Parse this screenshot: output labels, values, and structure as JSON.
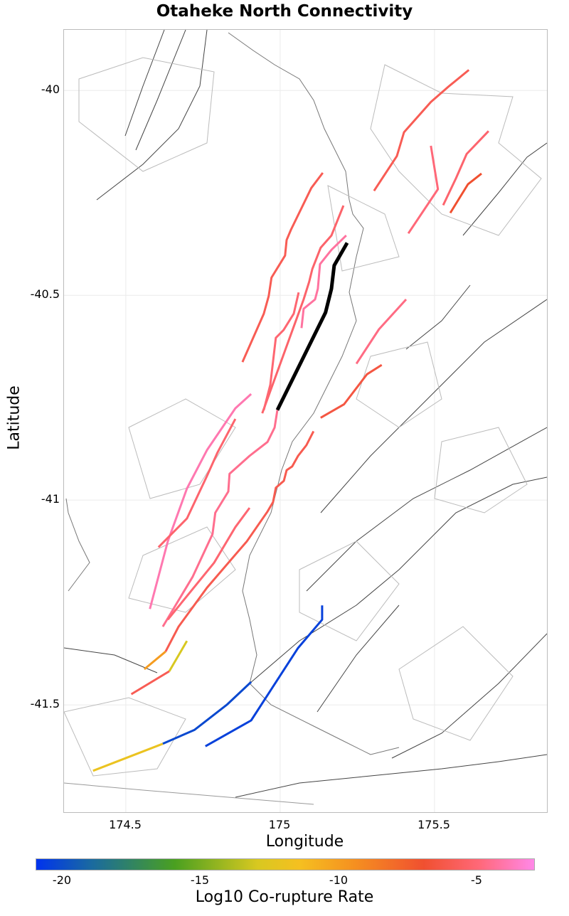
{
  "title": "Otaheke North Connectivity",
  "chart_data": {
    "type": "map",
    "title": "Otaheke North Connectivity",
    "xlabel": "Longitude",
    "ylabel": "Latitude",
    "xlim": [
      174.3,
      175.864
    ],
    "ylim": [
      -41.762,
      -39.852
    ],
    "x_ticks": [
      {
        "value": 174.5,
        "label": "174.5"
      },
      {
        "value": 175,
        "label": "175"
      },
      {
        "value": 175.5,
        "label": "175.5"
      }
    ],
    "y_ticks": [
      {
        "value": -40,
        "label": "-40"
      },
      {
        "value": -40.5,
        "label": "-40.5"
      },
      {
        "value": -41,
        "label": "-41"
      },
      {
        "value": -41.5,
        "label": "-41.5"
      }
    ],
    "grid": true,
    "colorbar": {
      "label": "Log10 Co-rupture Rate",
      "range": [
        -21,
        -3
      ],
      "ticks": [
        {
          "value": -20,
          "label": "-20"
        },
        {
          "value": -15,
          "label": "-15"
        },
        {
          "value": -10,
          "label": "-10"
        },
        {
          "value": -5,
          "label": "-5"
        }
      ],
      "stops": [
        {
          "value": -21,
          "color": "#0033ee"
        },
        {
          "value": -19,
          "color": "#1a6aa0"
        },
        {
          "value": -16,
          "color": "#4aa020"
        },
        {
          "value": -13,
          "color": "#d8c820"
        },
        {
          "value": -11.5,
          "color": "#f5c020"
        },
        {
          "value": -9.5,
          "color": "#f59020"
        },
        {
          "value": -7,
          "color": "#f05030"
        },
        {
          "value": -5,
          "color": "#ff6878"
        },
        {
          "value": -3,
          "color": "#ff88e8"
        }
      ],
      "placement": "bottom"
    },
    "target_fault": {
      "name": "Otaheke North",
      "color": "#000000",
      "coords": [
        [
          175.217,
          -40.372
        ],
        [
          175.175,
          -40.427
        ],
        [
          175.166,
          -40.484
        ],
        [
          175.147,
          -40.542
        ],
        [
          174.991,
          -40.78
        ]
      ]
    },
    "faults": [
      {
        "rate": -6,
        "coords": [
          [
            175.138,
            -40.201
          ],
          [
            175.101,
            -40.238
          ],
          [
            175.035,
            -40.34
          ],
          [
            175.021,
            -40.365
          ],
          [
            175.016,
            -40.403
          ],
          [
            174.972,
            -40.457
          ],
          [
            174.963,
            -40.502
          ],
          [
            174.947,
            -40.545
          ],
          [
            174.878,
            -40.663
          ]
        ]
      },
      {
        "rate": -5.4,
        "coords": [
          [
            175.205,
            -40.281
          ],
          [
            175.166,
            -40.354
          ],
          [
            175.131,
            -40.384
          ],
          [
            175.104,
            -40.436
          ],
          [
            175.094,
            -40.467
          ],
          [
            175.076,
            -40.51
          ],
          [
            174.942,
            -40.788
          ]
        ]
      },
      {
        "rate": -4.3,
        "coords": [
          [
            175.214,
            -40.354
          ],
          [
            175.166,
            -40.389
          ],
          [
            175.129,
            -40.424
          ],
          [
            175.122,
            -40.484
          ],
          [
            175.113,
            -40.51
          ],
          [
            175.076,
            -40.533
          ],
          [
            175.069,
            -40.58
          ]
        ]
      },
      {
        "rate": -5.2,
        "coords": [
          [
            175.06,
            -40.493
          ],
          [
            175.044,
            -40.545
          ],
          [
            175.011,
            -40.585
          ],
          [
            174.986,
            -40.604
          ],
          [
            174.968,
            -40.719
          ],
          [
            174.947,
            -40.78
          ]
        ]
      },
      {
        "rate": -4.8,
        "coords": [
          [
            175.408,
            -40.51
          ],
          [
            175.32,
            -40.583
          ],
          [
            175.247,
            -40.667
          ]
        ]
      },
      {
        "rate": -6.5,
        "coords": [
          [
            175.329,
            -40.67
          ],
          [
            175.281,
            -40.693
          ],
          [
            175.207,
            -40.766
          ],
          [
            175.131,
            -40.799
          ]
        ]
      },
      {
        "rate": -4.6,
        "coords": [
          [
            174.991,
            -40.78
          ],
          [
            174.982,
            -40.823
          ],
          [
            174.959,
            -40.858
          ],
          [
            174.901,
            -40.892
          ],
          [
            174.836,
            -40.936
          ],
          [
            174.832,
            -40.979
          ],
          [
            174.79,
            -41.031
          ],
          [
            174.781,
            -41.083
          ],
          [
            174.717,
            -41.187
          ],
          [
            174.62,
            -41.309
          ]
        ]
      },
      {
        "rate": -4.0,
        "coords": [
          [
            174.906,
            -40.741
          ],
          [
            174.855,
            -40.776
          ],
          [
            174.763,
            -40.878
          ],
          [
            174.698,
            -40.972
          ],
          [
            174.636,
            -41.101
          ],
          [
            174.578,
            -41.266
          ]
        ]
      },
      {
        "rate": -5.3,
        "coords": [
          [
            174.855,
            -40.802
          ],
          [
            174.797,
            -40.884
          ],
          [
            174.763,
            -40.941
          ],
          [
            174.698,
            -41.045
          ],
          [
            174.606,
            -41.115
          ]
        ]
      },
      {
        "rate": -6.1,
        "coords": [
          [
            175.108,
            -40.832
          ],
          [
            175.085,
            -40.866
          ],
          [
            175.058,
            -40.892
          ],
          [
            175.039,
            -40.918
          ],
          [
            175.021,
            -40.927
          ],
          [
            175.012,
            -40.953
          ],
          [
            174.986,
            -40.97
          ],
          [
            174.977,
            -41.005
          ],
          [
            174.959,
            -41.028
          ],
          [
            174.924,
            -41.066
          ],
          [
            174.892,
            -41.101
          ],
          [
            174.862,
            -41.127
          ],
          [
            174.763,
            -41.214
          ],
          [
            174.671,
            -41.309
          ],
          [
            174.629,
            -41.37
          ]
        ]
      },
      {
        "rate": -5.2,
        "coords": [
          [
            174.901,
            -41.019
          ],
          [
            174.855,
            -41.066
          ],
          [
            174.786,
            -41.153
          ],
          [
            174.636,
            -41.292
          ]
        ]
      },
      {
        "rate": -10,
        "coords": [
          [
            174.629,
            -41.37
          ],
          [
            174.56,
            -41.413
          ]
        ]
      },
      {
        "rate": -13,
        "coords": [
          [
            174.698,
            -41.344
          ],
          [
            174.641,
            -41.418
          ]
        ]
      },
      {
        "rate": -6,
        "coords": [
          [
            174.641,
            -41.418
          ],
          [
            174.518,
            -41.474
          ]
        ]
      },
      {
        "rate": -20.5,
        "coords": [
          [
            175.136,
            -41.257
          ],
          [
            175.136,
            -41.292
          ],
          [
            175.058,
            -41.361
          ],
          [
            174.906,
            -41.538
          ],
          [
            174.758,
            -41.601
          ]
        ]
      },
      {
        "rate": -20.2,
        "coords": [
          [
            174.906,
            -41.444
          ],
          [
            174.827,
            -41.5
          ],
          [
            174.723,
            -41.561
          ],
          [
            174.62,
            -41.595
          ]
        ]
      },
      {
        "rate": -12,
        "coords": [
          [
            174.62,
            -41.595
          ],
          [
            174.394,
            -41.661
          ]
        ]
      },
      {
        "rate": -6,
        "coords": [
          [
            175.611,
            -39.95
          ],
          [
            175.546,
            -39.99
          ],
          [
            175.488,
            -40.028
          ],
          [
            175.401,
            -40.102
          ],
          [
            175.378,
            -40.16
          ],
          [
            175.304,
            -40.245
          ]
        ]
      },
      {
        "rate": -5,
        "coords": [
          [
            175.488,
            -40.135
          ],
          [
            175.511,
            -40.241
          ],
          [
            175.415,
            -40.349
          ]
        ]
      },
      {
        "rate": -5.3,
        "coords": [
          [
            175.675,
            -40.099
          ],
          [
            175.604,
            -40.155
          ],
          [
            175.569,
            -40.215
          ],
          [
            175.528,
            -40.28
          ]
        ]
      },
      {
        "rate": -7,
        "coords": [
          [
            175.652,
            -40.203
          ],
          [
            175.608,
            -40.229
          ],
          [
            175.551,
            -40.299
          ]
        ]
      }
    ]
  }
}
